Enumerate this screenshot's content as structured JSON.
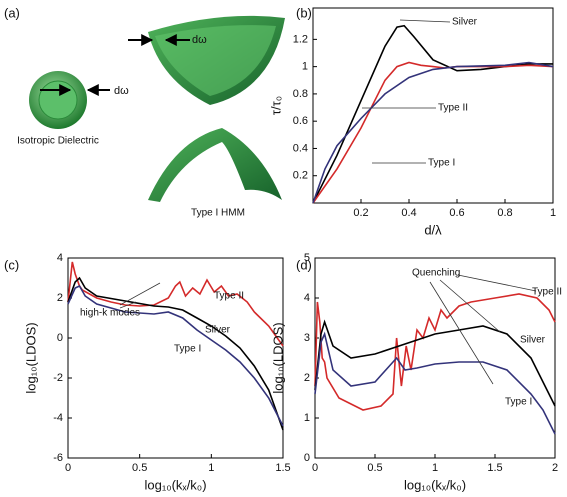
{
  "panel_a": {
    "label": "(a)",
    "d_omega_top": "dω",
    "d_omega_left": "dω",
    "caption_left": "Isotropic Dielectric",
    "caption_right": "Type I HMM"
  },
  "chart_data": [
    {
      "type": "line",
      "panel_label": "(b)",
      "x_label": "d/λ",
      "y_label": "τ/τ₀",
      "xlim": [
        0,
        1
      ],
      "ylim": [
        0,
        1.43
      ],
      "xticks": [
        0.2,
        0.4,
        0.6,
        0.8,
        1
      ],
      "yticks": [
        0.2,
        0.4,
        0.6,
        0.8,
        1,
        1.2
      ],
      "annotations": [
        "Silver",
        "Type II",
        "Type I"
      ],
      "series": [
        {
          "name": "Silver",
          "color": "#000000",
          "x": [
            0,
            0.1,
            0.2,
            0.3,
            0.35,
            0.38,
            0.42,
            0.5,
            0.6,
            0.7,
            0.8,
            0.9,
            1
          ],
          "values": [
            0,
            0.35,
            0.75,
            1.15,
            1.29,
            1.3,
            1.22,
            1.05,
            0.97,
            0.98,
            1.0,
            1.02,
            1.02
          ]
        },
        {
          "name": "Type II",
          "color": "#d42a2a",
          "x": [
            0,
            0.1,
            0.2,
            0.3,
            0.35,
            0.4,
            0.45,
            0.5,
            0.55,
            0.6,
            0.7,
            0.8,
            0.9,
            1
          ],
          "values": [
            0,
            0.25,
            0.55,
            0.9,
            1.0,
            1.03,
            1.01,
            1.0,
            0.99,
            1.0,
            1.0,
            1.0,
            1.01,
            1.0
          ]
        },
        {
          "name": "Type I",
          "color": "#33337a",
          "x": [
            0,
            0.05,
            0.1,
            0.2,
            0.3,
            0.4,
            0.5,
            0.6,
            0.8,
            0.9,
            1
          ],
          "values": [
            0,
            0.25,
            0.42,
            0.62,
            0.8,
            0.92,
            0.98,
            1.0,
            1.01,
            1.03,
            1.0
          ]
        }
      ]
    },
    {
      "type": "line",
      "panel_label": "(c)",
      "x_label": "log₁₀(kₓ/k₀)",
      "y_label": "log₁₀(LDOS)",
      "xlim": [
        0,
        1.5
      ],
      "ylim": [
        -6,
        4
      ],
      "xticks": [
        0,
        0.5,
        1,
        1.5
      ],
      "yticks": [
        -6,
        -4,
        -2,
        0,
        2,
        4
      ],
      "annotations": [
        "Type II",
        "Silver",
        "Type I",
        "high-k modes"
      ],
      "series": [
        {
          "name": "Type II",
          "color": "#d42a2a",
          "x": [
            0,
            0.03,
            0.05,
            0.08,
            0.1,
            0.2,
            0.3,
            0.4,
            0.5,
            0.6,
            0.7,
            0.75,
            0.78,
            0.82,
            0.87,
            0.92,
            0.97,
            1.02,
            1.07,
            1.12,
            1.18,
            1.25,
            1.3,
            1.4,
            1.5
          ],
          "values": [
            1.8,
            3.8,
            3.2,
            2.6,
            2.4,
            2.0,
            1.8,
            1.65,
            1.6,
            1.65,
            2.0,
            2.6,
            2.8,
            2.1,
            2.5,
            2.2,
            2.9,
            2.3,
            2.6,
            2.1,
            2.2,
            1.8,
            1.3,
            0.6,
            -0.4
          ]
        },
        {
          "name": "Silver",
          "color": "#000000",
          "x": [
            0,
            0.05,
            0.08,
            0.12,
            0.2,
            0.4,
            0.6,
            0.7,
            0.8,
            0.9,
            1.0,
            1.1,
            1.2,
            1.3,
            1.4,
            1.5
          ],
          "values": [
            1.8,
            2.8,
            3.0,
            2.5,
            2.1,
            1.85,
            1.6,
            1.55,
            1.4,
            1.0,
            0.6,
            0.1,
            -0.5,
            -1.4,
            -2.6,
            -4.6
          ]
        },
        {
          "name": "Type I",
          "color": "#33337a",
          "x": [
            0,
            0.05,
            0.08,
            0.12,
            0.2,
            0.4,
            0.6,
            0.7,
            0.8,
            0.9,
            1.0,
            1.1,
            1.2,
            1.3,
            1.4,
            1.5
          ],
          "values": [
            1.7,
            2.5,
            2.6,
            2.1,
            1.7,
            1.3,
            1.2,
            1.3,
            1.0,
            0.4,
            -0.1,
            -0.6,
            -1.2,
            -2.0,
            -3.0,
            -4.4
          ]
        }
      ]
    },
    {
      "type": "line",
      "panel_label": "(d)",
      "x_label": "log₁₀(kₓ/k₀)",
      "y_label": "log₁₀(LDOS)",
      "xlim": [
        0,
        2
      ],
      "ylim": [
        0,
        5
      ],
      "xticks": [
        0,
        0.5,
        1,
        1.5,
        2
      ],
      "yticks": [
        0,
        1,
        2,
        3,
        4,
        5
      ],
      "annotations": [
        "Quenching",
        "Type II",
        "Silver",
        "Type I"
      ],
      "series": [
        {
          "name": "Type II",
          "color": "#d42a2a",
          "x": [
            0,
            0.02,
            0.04,
            0.06,
            0.08,
            0.1,
            0.2,
            0.4,
            0.55,
            0.65,
            0.68,
            0.72,
            0.76,
            0.8,
            0.85,
            0.9,
            0.95,
            1.0,
            1.05,
            1.1,
            1.2,
            1.3,
            1.5,
            1.7,
            1.85,
            1.95,
            2
          ],
          "values": [
            1.8,
            3.9,
            3.4,
            2.5,
            2.4,
            2.0,
            1.5,
            1.2,
            1.3,
            1.6,
            3.0,
            1.8,
            2.8,
            2.2,
            3.2,
            3.0,
            3.5,
            3.2,
            3.7,
            3.5,
            3.8,
            3.9,
            4.0,
            4.1,
            4.0,
            3.7,
            3.4
          ]
        },
        {
          "name": "Silver",
          "color": "#000000",
          "x": [
            0,
            0.05,
            0.08,
            0.15,
            0.3,
            0.5,
            0.8,
            1.0,
            1.2,
            1.4,
            1.6,
            1.8,
            1.9,
            2
          ],
          "values": [
            1.7,
            3.1,
            3.4,
            2.8,
            2.5,
            2.6,
            2.9,
            3.1,
            3.2,
            3.3,
            3.1,
            2.5,
            1.9,
            1.3
          ]
        },
        {
          "name": "Type I",
          "color": "#33337a",
          "x": [
            0,
            0.05,
            0.08,
            0.15,
            0.3,
            0.5,
            0.62,
            0.68,
            0.75,
            0.85,
            1.0,
            1.2,
            1.4,
            1.6,
            1.8,
            1.9,
            2
          ],
          "values": [
            1.6,
            2.9,
            3.1,
            2.2,
            1.8,
            1.9,
            2.3,
            2.5,
            2.2,
            2.25,
            2.35,
            2.4,
            2.4,
            2.2,
            1.6,
            1.2,
            0.6
          ]
        }
      ]
    }
  ]
}
